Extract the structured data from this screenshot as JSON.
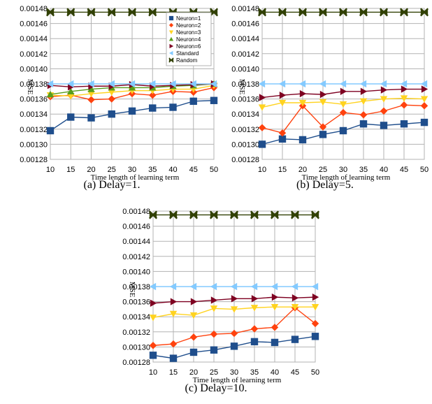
{
  "chart_data": [
    {
      "type": "line",
      "caption": "(a)  Delay=1.",
      "xlabel": "Time length of learning term",
      "ylabel": "MSE",
      "x": [
        10,
        15,
        20,
        25,
        30,
        35,
        40,
        45,
        50
      ],
      "ylim": [
        0.00128,
        0.00148
      ],
      "yticks": [
        "0.00148",
        "0.00146",
        "0.00144",
        "0.00142",
        "0.00140",
        "0.00138",
        "0.00136",
        "0.00134",
        "0.00132",
        "0.00130",
        "0.00128"
      ],
      "grid": true,
      "legend": "top-right",
      "series": [
        {
          "name": "Neuron=1",
          "color": "#1f4e8c",
          "marker": "square",
          "values": [
            0.001318,
            0.001336,
            0.001335,
            0.00134,
            0.001344,
            0.001348,
            0.001349,
            0.001357,
            0.001358
          ]
        },
        {
          "name": "Neuron=2",
          "color": "#ff420e",
          "marker": "diamond",
          "values": [
            0.001363,
            0.001365,
            0.001359,
            0.00136,
            0.001367,
            0.001365,
            0.00137,
            0.001369,
            0.001375
          ]
        },
        {
          "name": "Neuron=3",
          "color": "#ffd320",
          "marker": "tri-down",
          "values": [
            0.001365,
            0.001364,
            0.001367,
            0.001369,
            0.001371,
            0.001371,
            0.001373,
            0.001373,
            0.001378
          ]
        },
        {
          "name": "Neuron=4",
          "color": "#579d1c",
          "marker": "tri-up",
          "values": [
            0.001366,
            0.00137,
            0.001373,
            0.001375,
            0.001375,
            0.001375,
            0.001377,
            0.001378,
            0.00138
          ]
        },
        {
          "name": "Neuron=6",
          "color": "#7e0021",
          "marker": "tri-right",
          "values": [
            0.001378,
            0.001376,
            0.001377,
            0.001377,
            0.001379,
            0.001377,
            0.001378,
            0.001379,
            0.00138
          ]
        },
        {
          "name": "Standard",
          "color": "#83caff",
          "marker": "tri-left",
          "values": [
            0.00138,
            0.00138,
            0.00138,
            0.00138,
            0.00138,
            0.00138,
            0.00138,
            0.00138,
            0.00138
          ]
        },
        {
          "name": "Random",
          "color": "#314004",
          "marker": "x",
          "values": [
            0.001475,
            0.001475,
            0.001475,
            0.001475,
            0.001475,
            0.001475,
            0.001475,
            0.001475,
            0.001475
          ]
        }
      ]
    },
    {
      "type": "line",
      "caption": "(b)  Delay=5.",
      "xlabel": "Time length of learning term",
      "ylabel": "MSE",
      "x": [
        10,
        15,
        20,
        25,
        30,
        35,
        40,
        45,
        50
      ],
      "ylim": [
        0.00128,
        0.00148
      ],
      "yticks": [
        "0.00148",
        "0.00146",
        "0.00144",
        "0.00142",
        "0.00140",
        "0.00138",
        "0.00136",
        "0.00134",
        "0.00132",
        "0.00130",
        "0.00128"
      ],
      "grid": true,
      "series": [
        {
          "name": "Neuron=1",
          "color": "#1f4e8c",
          "marker": "square",
          "values": [
            0.0013,
            0.001307,
            0.001306,
            0.001313,
            0.001318,
            0.001327,
            0.001325,
            0.001327,
            0.001329
          ]
        },
        {
          "name": "Neuron=2",
          "color": "#ff420e",
          "marker": "diamond",
          "values": [
            0.001322,
            0.001315,
            0.001351,
            0.001323,
            0.001342,
            0.001339,
            0.001344,
            0.001352,
            0.001351
          ]
        },
        {
          "name": "Neuron=3",
          "color": "#ffd320",
          "marker": "tri-down",
          "values": [
            0.001349,
            0.001355,
            0.001355,
            0.001356,
            0.001353,
            0.001357,
            0.00136,
            0.001361,
            0.00136
          ]
        },
        {
          "name": "Neuron=6",
          "color": "#7e0021",
          "marker": "tri-right",
          "values": [
            0.001362,
            0.001365,
            0.001367,
            0.001366,
            0.00137,
            0.00137,
            0.001372,
            0.001373,
            0.001373
          ]
        },
        {
          "name": "Standard",
          "color": "#83caff",
          "marker": "tri-left",
          "values": [
            0.00138,
            0.00138,
            0.00138,
            0.00138,
            0.00138,
            0.00138,
            0.00138,
            0.00138,
            0.00138
          ]
        },
        {
          "name": "Random",
          "color": "#314004",
          "marker": "x",
          "values": [
            0.001475,
            0.001475,
            0.001475,
            0.001475,
            0.001475,
            0.001475,
            0.001475,
            0.001475,
            0.001475
          ]
        }
      ]
    },
    {
      "type": "line",
      "caption": "(c)  Delay=10.",
      "xlabel": "Time length of learning term",
      "ylabel": "MSE",
      "x": [
        10,
        15,
        20,
        25,
        30,
        35,
        40,
        45,
        50
      ],
      "ylim": [
        0.00128,
        0.00148
      ],
      "yticks": [
        "0.00148",
        "0.00146",
        "0.00144",
        "0.00142",
        "0.00140",
        "0.00138",
        "0.00136",
        "0.00134",
        "0.00132",
        "0.00130",
        "0.00128"
      ],
      "grid": true,
      "series": [
        {
          "name": "Neuron=1",
          "color": "#1f4e8c",
          "marker": "square",
          "values": [
            0.001289,
            0.001285,
            0.001293,
            0.001296,
            0.001301,
            0.001307,
            0.001306,
            0.00131,
            0.001314
          ]
        },
        {
          "name": "Neuron=2",
          "color": "#ff420e",
          "marker": "diamond",
          "values": [
            0.001302,
            0.001304,
            0.001313,
            0.001317,
            0.001318,
            0.001324,
            0.001326,
            0.001352,
            0.001331
          ]
        },
        {
          "name": "Neuron=3",
          "color": "#ffd320",
          "marker": "tri-down",
          "values": [
            0.001339,
            0.001344,
            0.001342,
            0.001351,
            0.00135,
            0.001352,
            0.001353,
            0.001353,
            0.001353
          ]
        },
        {
          "name": "Neuron=6",
          "color": "#7e0021",
          "marker": "tri-right",
          "values": [
            0.001358,
            0.00136,
            0.00136,
            0.001362,
            0.001364,
            0.001364,
            0.001366,
            0.001365,
            0.001366
          ]
        },
        {
          "name": "Standard",
          "color": "#83caff",
          "marker": "tri-left",
          "values": [
            0.00138,
            0.00138,
            0.00138,
            0.00138,
            0.00138,
            0.00138,
            0.00138,
            0.00138,
            0.00138
          ]
        },
        {
          "name": "Random",
          "color": "#314004",
          "marker": "x",
          "values": [
            0.001475,
            0.001475,
            0.001475,
            0.001475,
            0.001475,
            0.001475,
            0.001475,
            0.001475,
            0.001475
          ]
        }
      ]
    }
  ]
}
